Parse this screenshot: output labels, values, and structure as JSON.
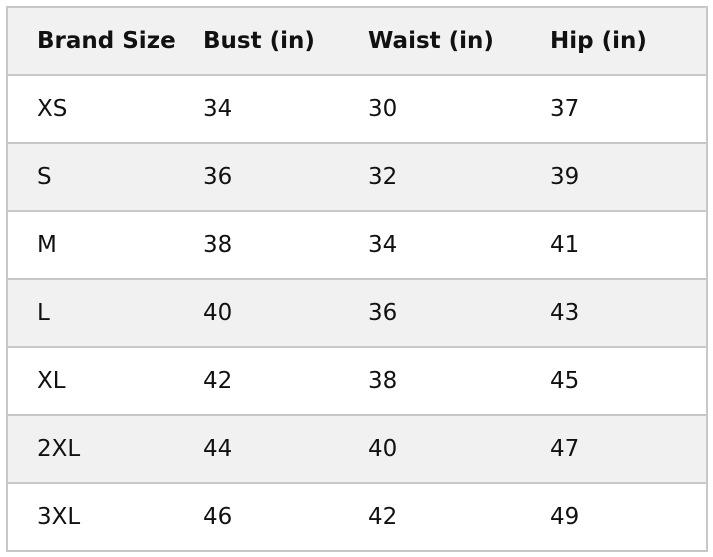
{
  "table": {
    "headers": [
      "Brand Size",
      "Bust (in)",
      "Waist (in)",
      "Hip (in)"
    ],
    "rows": [
      [
        "XS",
        "34",
        "30",
        "37"
      ],
      [
        "S",
        "36",
        "32",
        "39"
      ],
      [
        "M",
        "38",
        "34",
        "41"
      ],
      [
        "L",
        "40",
        "36",
        "43"
      ],
      [
        "XL",
        "42",
        "38",
        "45"
      ],
      [
        "2XL",
        "44",
        "40",
        "47"
      ],
      [
        "3XL",
        "46",
        "42",
        "49"
      ]
    ]
  },
  "colors": {
    "header_bg": "#f1f1f1",
    "alt_row_bg": "#f1f1f1",
    "border": "#c8c8c8"
  }
}
